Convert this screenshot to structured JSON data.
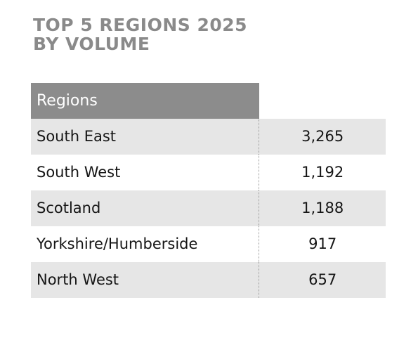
{
  "title_lines": [
    "TOP 5 REGIONS 2025",
    "BY VOLUME"
  ],
  "table": {
    "header": [
      "Regions"
    ],
    "rows": [
      [
        "South East",
        "3,265"
      ],
      [
        "South West",
        "1,192"
      ],
      [
        "Scotland",
        "1,188"
      ],
      [
        "Yorkshire/Humberside",
        "917"
      ],
      [
        "North West",
        "657"
      ]
    ]
  }
}
